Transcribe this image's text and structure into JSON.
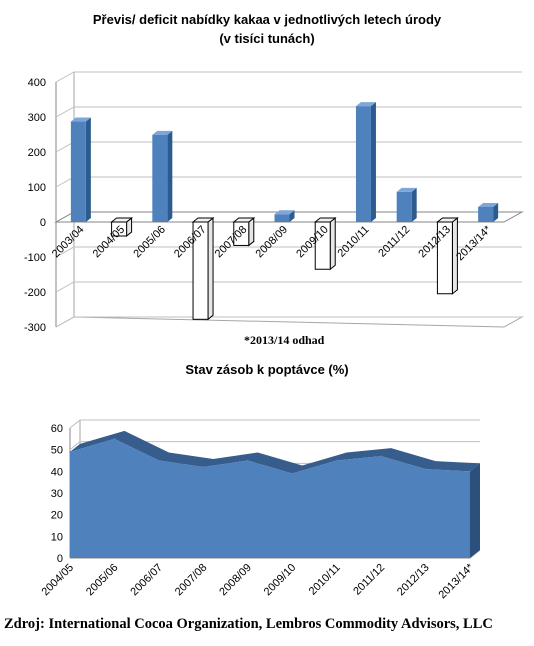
{
  "chart_data": [
    {
      "type": "bar",
      "title": "Převis/ deficit nabídky  kakaa v jednotlivých letech úrody",
      "subtitle": "(v tisíci tunách)",
      "categories": [
        "2003/04",
        "2004/05",
        "2005/06",
        "2006/07",
        "2007/08",
        "2008/09",
        "2009/10",
        "2010/11",
        "2011/12",
        "2012/13",
        "2013/14*"
      ],
      "values": [
        287,
        -40,
        249,
        -278,
        -67,
        22,
        -135,
        331,
        86,
        -205,
        43
      ],
      "ylim": [
        -300,
        400
      ],
      "yticks": [
        400,
        300,
        200,
        100,
        0,
        -100,
        -200,
        -300
      ],
      "positive_color": "#4f81bd",
      "negative_color": "#ffffff",
      "grid": true,
      "annotation": "*2013/14 odhad"
    },
    {
      "type": "area",
      "title": "Stav zásob k poptávce (%)",
      "categories": [
        "2004/05",
        "2005/06",
        "2006/07",
        "2007/08",
        "2008/09",
        "2009/10",
        "2010/11",
        "2011/12",
        "2012/13",
        "2013/14*"
      ],
      "values": [
        49,
        55,
        45,
        42,
        45,
        39,
        45,
        47,
        41,
        40
      ],
      "ylim": [
        0,
        60
      ],
      "yticks": [
        60,
        50,
        40,
        30,
        20,
        10,
        0
      ],
      "color": "#4f81bd",
      "grid": true
    }
  ],
  "source": "Zdroj: International Cocoa Organization, Lembros Commodity Advisors, LLC"
}
